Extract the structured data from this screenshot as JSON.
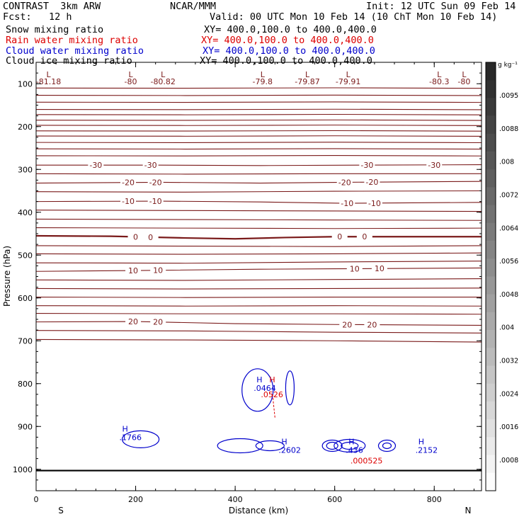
{
  "header": {
    "model": "CONTRAST  3km ARW",
    "center": "NCAR/MMM",
    "init": "Init: 12 UTC Sun 09 Feb 14",
    "fcst": "Fcst:   12 h",
    "valid": "Valid: 00 UTC Mon 10 Feb 14 (10 ChT Mon 10 Feb 14)",
    "fields": [
      {
        "name": "Snow mixing ratio",
        "xy": "XY= 400.0,100.0 to 400.0,400.0",
        "color": "#000000"
      },
      {
        "name": "Rain water mixing ratio",
        "xy": "XY= 400.0,100.0 to 400.0,400.0",
        "color": "#dd0000"
      },
      {
        "name": "Cloud water mixing ratio",
        "xy": "XY= 400.0,100.0 to 400.0,400.0",
        "color": "#0000cc"
      },
      {
        "name": "Cloud ice mixing ratio",
        "xy": "XY= 400.0,100.0 to 400.0,400.0",
        "color": "#000000"
      }
    ]
  },
  "chart_data": {
    "type": "contour cross-section",
    "xlabel": "Distance (km)",
    "ylabel": "Pressure (hPa)",
    "xlim": [
      0,
      895
    ],
    "ylim": [
      50,
      1050
    ],
    "x_ticks": [
      0,
      200,
      400,
      600,
      800
    ],
    "y_ticks": [
      100,
      200,
      300,
      400,
      500,
      600,
      700,
      800,
      900,
      1000
    ],
    "start_label": "S",
    "end_label": "N",
    "colors": {
      "temperature": "#7a1a1a",
      "cloud_water": "#0000cc",
      "rain": "#dd0000",
      "ground": "#000000"
    },
    "temperature_contours": [
      {
        "label": "-30",
        "points": [
          [
            0,
            290
          ],
          [
            250,
            290
          ],
          [
            450,
            291
          ],
          [
            650,
            290
          ],
          [
            895,
            289
          ]
        ],
        "labels_at": [
          120,
          230,
          665,
          800
        ]
      },
      {
        "label": "-20",
        "points": [
          [
            0,
            332
          ],
          [
            250,
            330
          ],
          [
            450,
            332
          ],
          [
            620,
            330
          ],
          [
            895,
            328
          ]
        ],
        "labels_at": [
          185,
          240,
          620,
          675
        ]
      },
      {
        "label": "-10",
        "points": [
          [
            0,
            375
          ],
          [
            250,
            374
          ],
          [
            450,
            376
          ],
          [
            620,
            379
          ],
          [
            895,
            377
          ]
        ],
        "labels_at": [
          185,
          240,
          625,
          680
        ]
      },
      {
        "label": "0",
        "points": [
          [
            0,
            455
          ],
          [
            150,
            456
          ],
          [
            300,
            460
          ],
          [
            400,
            462
          ],
          [
            500,
            459
          ],
          [
            600,
            457
          ],
          [
            895,
            457
          ]
        ],
        "labels_at": [
          200,
          230,
          610,
          660
        ],
        "bold": true
      },
      {
        "label": "10",
        "points": [
          [
            0,
            538
          ],
          [
            200,
            536
          ],
          [
            450,
            533
          ],
          [
            600,
            532
          ],
          [
            895,
            530
          ]
        ],
        "labels_at": [
          195,
          245,
          640,
          690
        ]
      },
      {
        "label": "20",
        "points": [
          [
            0,
            656
          ],
          [
            200,
            655
          ],
          [
            400,
            660
          ],
          [
            600,
            662
          ],
          [
            895,
            664
          ]
        ],
        "labels_at": [
          195,
          245,
          625,
          675
        ]
      }
    ],
    "temperature_low_labels": [
      {
        "x": 25,
        "value": "-81.18"
      },
      {
        "x": 190,
        "value": "-80"
      },
      {
        "x": 255,
        "value": "-80.82"
      },
      {
        "x": 455,
        "value": "-79.8"
      },
      {
        "x": 545,
        "value": "-79.87"
      },
      {
        "x": 627,
        "value": "-79.91"
      },
      {
        "x": 810,
        "value": "-80.3"
      },
      {
        "x": 860,
        "value": "-80"
      }
    ],
    "cloud_water_maxima": [
      {
        "x": 190,
        "p": 925,
        "label": "H",
        "value": ".1766"
      },
      {
        "x": 510,
        "p": 955,
        "label": "H",
        "value": ".2602"
      },
      {
        "x": 645,
        "p": 955,
        "label": "H",
        "value": ".436"
      },
      {
        "x": 785,
        "p": 955,
        "label": "H",
        "value": ".2152"
      },
      {
        "x": 460,
        "p": 810,
        "label": "H",
        "value": ".0464"
      }
    ],
    "rain_maxima": [
      {
        "x": 480,
        "p": 810,
        "label": "H",
        "value": ".0526"
      },
      {
        "x": 660,
        "p": 965,
        "label": "",
        "value": ".000525"
      }
    ],
    "colorbar": {
      "unit": "g kg⁻¹",
      "ticks": [
        ".0008",
        ".0016",
        ".0024",
        ".0032",
        ".004",
        ".0048",
        ".0056",
        ".0064",
        ".0072",
        ".008",
        ".0088",
        ".0095"
      ]
    }
  }
}
